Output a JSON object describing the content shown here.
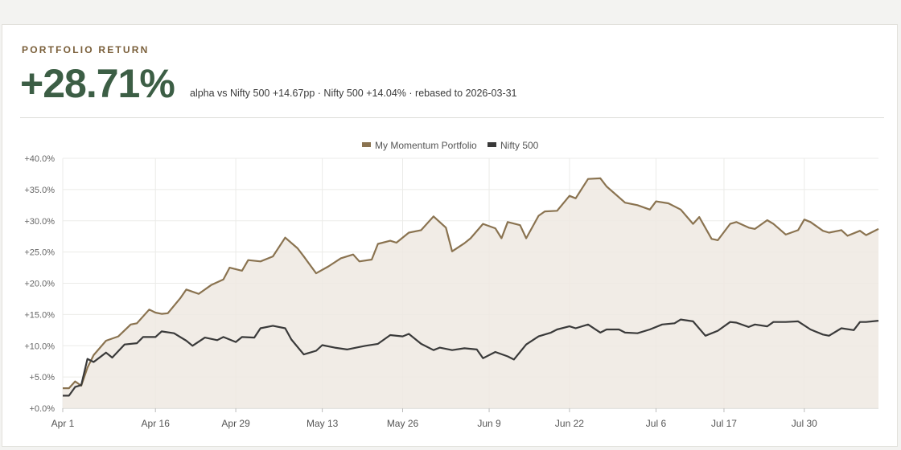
{
  "header": {
    "eyebrow": "PORTFOLIO RETURN",
    "headline": "+28.71%",
    "subtitle": "alpha vs Nifty 500 +14.67pp · Nifty 500 +14.04% · rebased to 2026-03-31"
  },
  "colors": {
    "portfolio": "#8a7350",
    "benchmark": "#3a3a3a",
    "area": "#eee9e2",
    "headline": "#3c5e45"
  },
  "chart_data": {
    "type": "line",
    "title": "",
    "xlabel": "",
    "ylabel": "",
    "ylim": [
      0,
      40
    ],
    "yticks": [
      0,
      5,
      10,
      15,
      20,
      25,
      30,
      35,
      40
    ],
    "ytick_labels": [
      "+0.0%",
      "+5.0%",
      "+10.0%",
      "+15.0%",
      "+20.0%",
      "+25.0%",
      "+30.0%",
      "+35.0%",
      "+40.0%"
    ],
    "xticks": [
      "2026-04-01",
      "2026-04-16",
      "2026-04-29",
      "2026-05-13",
      "2026-05-26",
      "2026-06-09",
      "2026-06-22",
      "2026-07-06",
      "2026-07-17",
      "2026-07-30"
    ],
    "xtick_labels": [
      "Apr 1",
      "Apr 16",
      "Apr 29",
      "May 13",
      "May 26",
      "Jun 9",
      "Jun 22",
      "Jul 6",
      "Jul 17",
      "Jul 30"
    ],
    "grid": true,
    "legend_position": "top-center",
    "series": [
      {
        "name": "My Momentum Portfolio",
        "points": [
          [
            "2026-04-01",
            3.2
          ],
          [
            "2026-04-02",
            3.2
          ],
          [
            "2026-04-03",
            4.3
          ],
          [
            "2026-04-04",
            3.6
          ],
          [
            "2026-04-05",
            6.5
          ],
          [
            "2026-04-06",
            8.5
          ],
          [
            "2026-04-08",
            10.8
          ],
          [
            "2026-04-10",
            11.5
          ],
          [
            "2026-04-12",
            13.4
          ],
          [
            "2026-04-13",
            13.6
          ],
          [
            "2026-04-15",
            15.8
          ],
          [
            "2026-04-16",
            15.3
          ],
          [
            "2026-04-17",
            15.1
          ],
          [
            "2026-04-18",
            15.2
          ],
          [
            "2026-04-20",
            17.6
          ],
          [
            "2026-04-21",
            19.0
          ],
          [
            "2026-04-23",
            18.3
          ],
          [
            "2026-04-25",
            19.7
          ],
          [
            "2026-04-27",
            20.6
          ],
          [
            "2026-04-28",
            22.5
          ],
          [
            "2026-04-30",
            22.0
          ],
          [
            "2026-05-01",
            23.7
          ],
          [
            "2026-05-03",
            23.5
          ],
          [
            "2026-05-05",
            24.3
          ],
          [
            "2026-05-07",
            27.3
          ],
          [
            "2026-05-09",
            25.6
          ],
          [
            "2026-05-10",
            24.3
          ],
          [
            "2026-05-12",
            21.6
          ],
          [
            "2026-05-14",
            22.7
          ],
          [
            "2026-05-16",
            24.0
          ],
          [
            "2026-05-18",
            24.6
          ],
          [
            "2026-05-19",
            23.5
          ],
          [
            "2026-05-21",
            23.8
          ],
          [
            "2026-05-22",
            26.3
          ],
          [
            "2026-05-24",
            26.8
          ],
          [
            "2026-05-25",
            26.5
          ],
          [
            "2026-05-27",
            28.1
          ],
          [
            "2026-05-29",
            28.5
          ],
          [
            "2026-05-31",
            30.7
          ],
          [
            "2026-06-02",
            28.9
          ],
          [
            "2026-06-03",
            25.1
          ],
          [
            "2026-06-05",
            26.4
          ],
          [
            "2026-06-06",
            27.2
          ],
          [
            "2026-06-08",
            29.5
          ],
          [
            "2026-06-10",
            28.8
          ],
          [
            "2026-06-11",
            27.2
          ],
          [
            "2026-06-12",
            29.8
          ],
          [
            "2026-06-14",
            29.3
          ],
          [
            "2026-06-15",
            27.2
          ],
          [
            "2026-06-17",
            30.8
          ],
          [
            "2026-06-18",
            31.5
          ],
          [
            "2026-06-20",
            31.6
          ],
          [
            "2026-06-22",
            34.0
          ],
          [
            "2026-06-23",
            33.6
          ],
          [
            "2026-06-25",
            36.7
          ],
          [
            "2026-06-27",
            36.8
          ],
          [
            "2026-06-28",
            35.5
          ],
          [
            "2026-07-01",
            32.9
          ],
          [
            "2026-07-03",
            32.5
          ],
          [
            "2026-07-05",
            31.8
          ],
          [
            "2026-07-06",
            33.1
          ],
          [
            "2026-07-08",
            32.8
          ],
          [
            "2026-07-10",
            31.8
          ],
          [
            "2026-07-12",
            29.5
          ],
          [
            "2026-07-13",
            30.6
          ],
          [
            "2026-07-15",
            27.1
          ],
          [
            "2026-07-16",
            26.9
          ],
          [
            "2026-07-18",
            29.5
          ],
          [
            "2026-07-19",
            29.8
          ],
          [
            "2026-07-21",
            28.9
          ],
          [
            "2026-07-22",
            28.7
          ],
          [
            "2026-07-24",
            30.1
          ],
          [
            "2026-07-25",
            29.5
          ],
          [
            "2026-07-27",
            27.8
          ],
          [
            "2026-07-29",
            28.5
          ],
          [
            "2026-07-30",
            30.2
          ],
          [
            "2026-07-31",
            29.8
          ],
          [
            "2026-08-02",
            28.4
          ],
          [
            "2026-08-03",
            28.1
          ],
          [
            "2026-08-05",
            28.5
          ],
          [
            "2026-08-06",
            27.6
          ],
          [
            "2026-08-08",
            28.4
          ],
          [
            "2026-08-09",
            27.7
          ],
          [
            "2026-08-11",
            28.7
          ]
        ]
      },
      {
        "name": "Nifty 500",
        "points": [
          [
            "2026-04-01",
            2.0
          ],
          [
            "2026-04-02",
            2.0
          ],
          [
            "2026-04-03",
            3.4
          ],
          [
            "2026-04-04",
            3.7
          ],
          [
            "2026-04-05",
            7.9
          ],
          [
            "2026-04-06",
            7.4
          ],
          [
            "2026-04-08",
            8.9
          ],
          [
            "2026-04-09",
            8.1
          ],
          [
            "2026-04-11",
            10.2
          ],
          [
            "2026-04-13",
            10.4
          ],
          [
            "2026-04-14",
            11.4
          ],
          [
            "2026-04-16",
            11.4
          ],
          [
            "2026-04-17",
            12.3
          ],
          [
            "2026-04-19",
            12.0
          ],
          [
            "2026-04-21",
            10.8
          ],
          [
            "2026-04-22",
            10.0
          ],
          [
            "2026-04-24",
            11.3
          ],
          [
            "2026-04-26",
            10.9
          ],
          [
            "2026-04-27",
            11.4
          ],
          [
            "2026-04-29",
            10.6
          ],
          [
            "2026-04-30",
            11.4
          ],
          [
            "2026-05-02",
            11.3
          ],
          [
            "2026-05-03",
            12.8
          ],
          [
            "2026-05-05",
            13.2
          ],
          [
            "2026-05-07",
            12.8
          ],
          [
            "2026-05-08",
            11.0
          ],
          [
            "2026-05-10",
            8.6
          ],
          [
            "2026-05-12",
            9.2
          ],
          [
            "2026-05-13",
            10.1
          ],
          [
            "2026-05-15",
            9.7
          ],
          [
            "2026-05-17",
            9.4
          ],
          [
            "2026-05-19",
            9.8
          ],
          [
            "2026-05-20",
            10.0
          ],
          [
            "2026-05-22",
            10.3
          ],
          [
            "2026-05-24",
            11.7
          ],
          [
            "2026-05-26",
            11.5
          ],
          [
            "2026-05-27",
            11.9
          ],
          [
            "2026-05-29",
            10.3
          ],
          [
            "2026-05-31",
            9.3
          ],
          [
            "2026-06-01",
            9.7
          ],
          [
            "2026-06-03",
            9.3
          ],
          [
            "2026-06-05",
            9.6
          ],
          [
            "2026-06-07",
            9.4
          ],
          [
            "2026-06-08",
            8.0
          ],
          [
            "2026-06-10",
            9.0
          ],
          [
            "2026-06-12",
            8.3
          ],
          [
            "2026-06-13",
            7.8
          ],
          [
            "2026-06-15",
            10.2
          ],
          [
            "2026-06-17",
            11.5
          ],
          [
            "2026-06-19",
            12.1
          ],
          [
            "2026-06-20",
            12.6
          ],
          [
            "2026-06-22",
            13.1
          ],
          [
            "2026-06-23",
            12.8
          ],
          [
            "2026-06-25",
            13.4
          ],
          [
            "2026-06-27",
            12.1
          ],
          [
            "2026-06-28",
            12.6
          ],
          [
            "2026-06-30",
            12.6
          ],
          [
            "2026-07-01",
            12.1
          ],
          [
            "2026-07-03",
            12.0
          ],
          [
            "2026-07-05",
            12.6
          ],
          [
            "2026-07-07",
            13.4
          ],
          [
            "2026-07-09",
            13.6
          ],
          [
            "2026-07-10",
            14.2
          ],
          [
            "2026-07-12",
            13.9
          ],
          [
            "2026-07-14",
            11.6
          ],
          [
            "2026-07-16",
            12.4
          ],
          [
            "2026-07-18",
            13.8
          ],
          [
            "2026-07-19",
            13.7
          ],
          [
            "2026-07-21",
            13.0
          ],
          [
            "2026-07-22",
            13.4
          ],
          [
            "2026-07-24",
            13.1
          ],
          [
            "2026-07-25",
            13.8
          ],
          [
            "2026-07-27",
            13.8
          ],
          [
            "2026-07-29",
            13.9
          ],
          [
            "2026-07-31",
            12.6
          ],
          [
            "2026-08-02",
            11.8
          ],
          [
            "2026-08-03",
            11.6
          ],
          [
            "2026-08-05",
            12.8
          ],
          [
            "2026-08-07",
            12.5
          ],
          [
            "2026-08-08",
            13.8
          ],
          [
            "2026-08-09",
            13.8
          ],
          [
            "2026-08-11",
            14.0
          ]
        ]
      }
    ]
  }
}
